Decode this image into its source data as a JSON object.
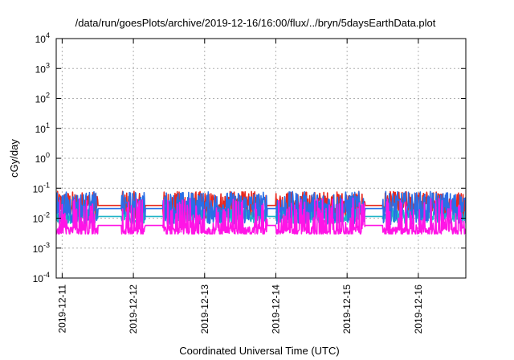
{
  "chart_data": {
    "type": "line",
    "title": "/data/run/goesPlots/archive/2019-12-16/16:00/flux/../bryn/5daysEarthData.plot",
    "xlabel": "Coordinated Universal Time (UTC)",
    "ylabel": "cGy/day",
    "yscale": "log",
    "ylim": [
      0.0001,
      10000
    ],
    "yticks": [
      {
        "base": "10",
        "exp": "-4",
        "value": 0.0001
      },
      {
        "base": "10",
        "exp": "-3",
        "value": 0.001
      },
      {
        "base": "10",
        "exp": "-2",
        "value": 0.01
      },
      {
        "base": "10",
        "exp": "-1",
        "value": 0.1
      },
      {
        "base": "10",
        "exp": "0",
        "value": 1
      },
      {
        "base": "10",
        "exp": "1",
        "value": 10
      },
      {
        "base": "10",
        "exp": "2",
        "value": 100
      },
      {
        "base": "10",
        "exp": "3",
        "value": 1000
      },
      {
        "base": "10",
        "exp": "4",
        "value": 10000
      }
    ],
    "xlim": [
      "2019-12-10T22:00",
      "2019-12-16T16:00"
    ],
    "xticks": [
      "2019-12-11",
      "2019-12-12",
      "2019-12-13",
      "2019-12-14",
      "2019-12-15",
      "2019-12-16"
    ],
    "grid": true,
    "series": [
      {
        "color": "#e8281e",
        "median": 0.028,
        "spread": 0.45,
        "floor": 0.0045
      },
      {
        "color": "#1eb4c8",
        "median": 0.012,
        "spread": 0.25,
        "floor": 0.005
      },
      {
        "color": "#2a6ee6",
        "median": 0.022,
        "spread": 0.55,
        "floor": 0.0055
      },
      {
        "color": "#ff14e6",
        "median": 0.006,
        "spread": 0.9,
        "floor": 0.003
      }
    ],
    "gaps": [
      {
        "start": "2019-12-11T12:00",
        "end": "2019-12-11T20:00"
      },
      {
        "start": "2019-12-12T04:00",
        "end": "2019-12-12T10:00"
      },
      {
        "start": "2019-12-13T21:00",
        "end": "2019-12-14T00:00"
      },
      {
        "start": "2019-12-15T06:00",
        "end": "2019-12-15T12:00"
      }
    ]
  }
}
